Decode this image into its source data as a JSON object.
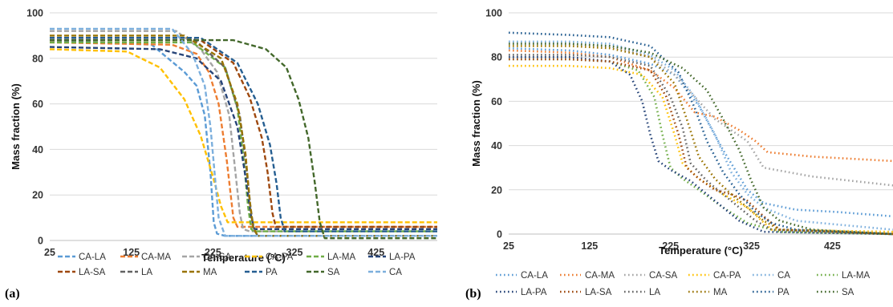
{
  "colors": {
    "CA-LA": "#5B9BD5",
    "CA-MA": "#ED7D31",
    "CA-SA": "#A5A5A5",
    "CA-PA": "#FFC000",
    "LA-MA": "#70AD47",
    "LA-PA": "#264478",
    "LA-SA": "#9E480E",
    "LA": "#636363",
    "MA": "#997300",
    "PA": "#255E91",
    "SA": "#43682B",
    "CA": "#7CAFDD"
  },
  "chart_data": [
    {
      "panel_label": "(a)",
      "type": "line",
      "line_style": "dashed",
      "xlabel": "Temperature (°C)",
      "ylabel": "Mass fraction (%)",
      "xlim": [
        25,
        500
      ],
      "ylim": [
        0,
        100
      ],
      "xticks": [
        25,
        125,
        225,
        325,
        425
      ],
      "yticks": [
        0,
        20,
        40,
        60,
        80,
        100
      ],
      "grid": "horizontal",
      "legend_position": "bottom",
      "legend_order": [
        "CA-LA",
        "CA-MA",
        "CA-SA",
        "CA-PA",
        "LA-MA",
        "LA-PA",
        "LA-SA",
        "LA",
        "MA",
        "PA",
        "SA",
        "CA"
      ],
      "series": [
        {
          "name": "CA-LA",
          "x": [
            25,
            150,
            190,
            205,
            215,
            222,
            226,
            230,
            240,
            500
          ],
          "y": [
            88,
            86,
            74,
            68,
            55,
            30,
            8,
            3,
            2,
            2
          ]
        },
        {
          "name": "CA-MA",
          "x": [
            25,
            175,
            205,
            220,
            232,
            242,
            250,
            255,
            260,
            500
          ],
          "y": [
            87,
            86,
            82,
            74,
            60,
            35,
            10,
            6,
            6,
            6
          ]
        },
        {
          "name": "CA-SA",
          "x": [
            25,
            180,
            210,
            230,
            245,
            252,
            258,
            262,
            270,
            500
          ],
          "y": [
            92,
            92,
            84,
            74,
            55,
            32,
            12,
            5,
            4,
            4
          ]
        },
        {
          "name": "CA-PA",
          "x": [
            25,
            120,
            160,
            190,
            210,
            225,
            235,
            243,
            248,
            500
          ],
          "y": [
            84,
            83,
            76,
            62,
            46,
            28,
            15,
            8,
            8,
            8
          ]
        },
        {
          "name": "LA-MA",
          "x": [
            25,
            200,
            240,
            255,
            263,
            268,
            272,
            275,
            500
          ],
          "y": [
            87,
            87,
            76,
            58,
            35,
            15,
            5,
            4,
            4
          ]
        },
        {
          "name": "LA-PA",
          "x": [
            25,
            160,
            205,
            235,
            255,
            265,
            272,
            276,
            500
          ],
          "y": [
            85,
            84,
            80,
            70,
            50,
            28,
            10,
            5,
            5
          ]
        },
        {
          "name": "LA-SA",
          "x": [
            25,
            210,
            250,
            270,
            285,
            292,
            298,
            302,
            310,
            500
          ],
          "y": [
            88,
            88,
            78,
            63,
            45,
            30,
            12,
            6,
            6,
            6
          ]
        },
        {
          "name": "LA",
          "x": [
            25,
            200,
            240,
            258,
            266,
            271,
            275,
            280,
            500
          ],
          "y": [
            89,
            89,
            76,
            55,
            32,
            15,
            5,
            2,
            2
          ]
        },
        {
          "name": "MA",
          "x": [
            25,
            190,
            235,
            255,
            265,
            270,
            274,
            280,
            500
          ],
          "y": [
            90,
            90,
            80,
            60,
            38,
            18,
            6,
            2,
            2
          ]
        },
        {
          "name": "PA",
          "x": [
            25,
            210,
            255,
            280,
            295,
            303,
            308,
            313,
            500
          ],
          "y": [
            89,
            89,
            78,
            60,
            42,
            25,
            10,
            4,
            4
          ]
        },
        {
          "name": "SA",
          "x": [
            25,
            250,
            290,
            315,
            330,
            342,
            350,
            356,
            362,
            500
          ],
          "y": [
            88,
            88,
            84,
            76,
            62,
            45,
            25,
            8,
            1,
            1
          ]
        },
        {
          "name": "CA",
          "x": [
            25,
            175,
            200,
            215,
            222,
            227,
            232,
            240,
            500
          ],
          "y": [
            93,
            93,
            82,
            68,
            50,
            30,
            10,
            2,
            2
          ]
        }
      ]
    },
    {
      "panel_label": "(b)",
      "type": "line",
      "line_style": "dotted",
      "xlabel": "Temperature (°C)",
      "ylabel": "Mass fraction (%)",
      "xlim": [
        25,
        500
      ],
      "ylim": [
        0,
        100
      ],
      "xticks": [
        25,
        125,
        225,
        325,
        425
      ],
      "yticks": [
        0,
        20,
        40,
        60,
        80,
        100
      ],
      "grid": "horizontal",
      "legend_position": "bottom",
      "legend_order": [
        "CA-LA",
        "CA-MA",
        "CA-SA",
        "CA-PA",
        "CA",
        "LA-MA",
        "LA-PA",
        "LA-SA",
        "LA",
        "MA",
        "PA",
        "SA"
      ],
      "series": [
        {
          "name": "CA-LA",
          "x": [
            25,
            100,
            150,
            200,
            230,
            260,
            290,
            320,
            340,
            380,
            430,
            500
          ],
          "y": [
            84,
            83,
            81,
            77,
            72,
            58,
            38,
            20,
            14,
            11,
            10,
            8
          ]
        },
        {
          "name": "CA-MA",
          "x": [
            25,
            100,
            150,
            200,
            230,
            255,
            280,
            310,
            330,
            345,
            400,
            500
          ],
          "y": [
            83,
            82,
            80,
            74,
            66,
            55,
            53,
            47,
            42,
            37,
            35,
            33
          ]
        },
        {
          "name": "CA-SA",
          "x": [
            25,
            100,
            150,
            200,
            230,
            255,
            280,
            300,
            320,
            340,
            400,
            500
          ],
          "y": [
            87,
            86,
            85,
            80,
            72,
            62,
            52,
            47,
            42,
            30,
            26,
            22
          ]
        },
        {
          "name": "CA-PA",
          "x": [
            25,
            100,
            150,
            190,
            215,
            230,
            240,
            260,
            290,
            320,
            350,
            500
          ],
          "y": [
            76,
            76,
            75,
            72,
            62,
            45,
            32,
            25,
            18,
            12,
            2,
            1
          ]
        },
        {
          "name": "CA",
          "x": [
            25,
            100,
            150,
            200,
            230,
            255,
            280,
            300,
            320,
            340,
            380,
            500
          ],
          "y": [
            87,
            87,
            86,
            81,
            74,
            62,
            45,
            28,
            18,
            12,
            6,
            2
          ]
        },
        {
          "name": "LA-MA",
          "x": [
            25,
            100,
            150,
            185,
            205,
            215,
            225,
            240,
            260,
            290,
            320,
            360,
            500
          ],
          "y": [
            79,
            79,
            78,
            74,
            62,
            45,
            30,
            25,
            20,
            12,
            5,
            1,
            0
          ]
        },
        {
          "name": "LA-PA",
          "x": [
            25,
            100,
            150,
            175,
            190,
            200,
            210,
            225,
            250,
            280,
            310,
            340,
            500
          ],
          "y": [
            80,
            80,
            78,
            72,
            60,
            45,
            33,
            29,
            24,
            15,
            6,
            1,
            0
          ]
        },
        {
          "name": "LA-SA",
          "x": [
            25,
            100,
            150,
            200,
            220,
            235,
            245,
            260,
            280,
            300,
            320,
            340,
            360,
            500
          ],
          "y": [
            79,
            79,
            78,
            74,
            62,
            45,
            30,
            25,
            20,
            18,
            15,
            8,
            2,
            0
          ]
        },
        {
          "name": "LA",
          "x": [
            25,
            100,
            150,
            200,
            225,
            240,
            250,
            270,
            290,
            310,
            330,
            350,
            500
          ],
          "y": [
            81,
            81,
            80,
            76,
            62,
            48,
            32,
            24,
            18,
            12,
            6,
            2,
            0
          ]
        },
        {
          "name": "MA",
          "x": [
            25,
            100,
            150,
            200,
            230,
            245,
            260,
            280,
            300,
            320,
            340,
            360,
            500
          ],
          "y": [
            85,
            85,
            84,
            80,
            68,
            52,
            35,
            25,
            18,
            12,
            6,
            2,
            0
          ]
        },
        {
          "name": "PA",
          "x": [
            25,
            100,
            150,
            200,
            235,
            255,
            270,
            290,
            310,
            330,
            350,
            380,
            500
          ],
          "y": [
            91,
            90,
            89,
            85,
            73,
            57,
            42,
            28,
            18,
            10,
            5,
            2,
            0
          ]
        },
        {
          "name": "SA",
          "x": [
            25,
            100,
            150,
            200,
            240,
            270,
            290,
            310,
            325,
            340,
            360,
            400,
            500
          ],
          "y": [
            86,
            86,
            85,
            82,
            75,
            65,
            52,
            38,
            24,
            12,
            6,
            2,
            0
          ]
        }
      ]
    }
  ]
}
